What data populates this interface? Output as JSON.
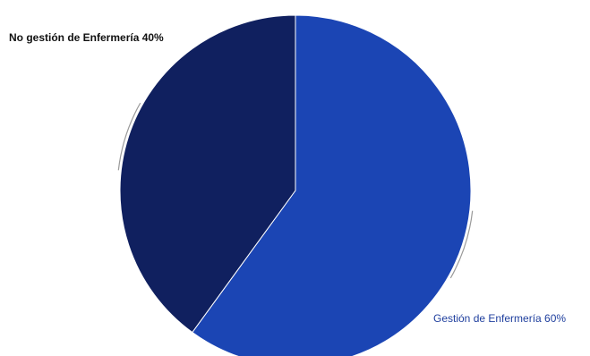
{
  "chart_data": {
    "type": "pie",
    "title": "",
    "slices": [
      {
        "label": "Gestión de Enfermería",
        "value": 60,
        "display": "Gestión de Enfermería 60%",
        "color": "#1b45b4"
      },
      {
        "label": "No gestión de Enfermería",
        "value": 40,
        "display": "No gestión de Enfermería 40%",
        "color": "#10205f"
      }
    ],
    "start_angle_deg": 0,
    "direction": "clockwise",
    "legend": "none",
    "label_placement": "outside with leader lines"
  }
}
